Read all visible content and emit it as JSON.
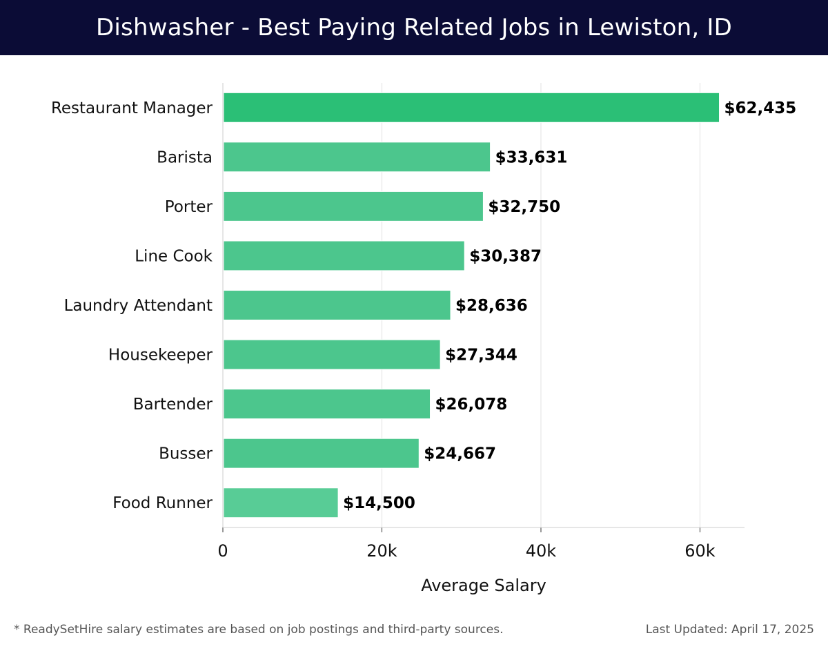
{
  "header": {
    "title": "Dishwasher - Best Paying Related Jobs in Lewiston, ID"
  },
  "chart_data": {
    "type": "bar",
    "orientation": "horizontal",
    "title": "Dishwasher - Best Paying Related Jobs in Lewiston, ID",
    "xlabel": "Average Salary",
    "ylabel": "",
    "categories": [
      "Restaurant Manager",
      "Barista",
      "Porter",
      "Line Cook",
      "Laundry Attendant",
      "Housekeeper",
      "Bartender",
      "Busser",
      "Food Runner"
    ],
    "values": [
      62435,
      33631,
      32750,
      30387,
      28636,
      27344,
      26078,
      24667,
      14500
    ],
    "value_labels": [
      "$62,435",
      "$33,631",
      "$32,750",
      "$30,387",
      "$28,636",
      "$27,344",
      "$26,078",
      "$24,667",
      "$14,500"
    ],
    "xlim": [
      0,
      65600
    ],
    "xticks": [
      0,
      20000,
      40000,
      60000
    ],
    "xtick_labels": [
      "0",
      "20k",
      "40k",
      "60k"
    ],
    "grid": true,
    "colors": {
      "top_bar": "#2bbf76",
      "bar": "#4cc68d",
      "last_bar": "#58cc96"
    }
  },
  "footer": {
    "note": "* ReadySetHire salary estimates are based on job postings and third-party sources.",
    "updated": "Last Updated: April 17, 2025"
  }
}
